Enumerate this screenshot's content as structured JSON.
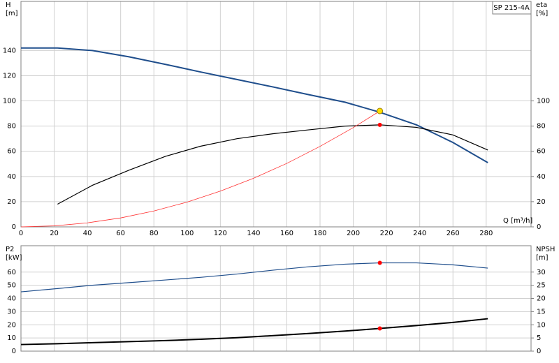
{
  "chart_data": [
    {
      "type": "line",
      "ylabel": "H",
      "yunit": "[m]",
      "y2label": "eta",
      "y2unit": "[%]",
      "xlabel": "Q [m³/h]",
      "tag": "SP 215-4A",
      "xlim": [
        0,
        307
      ],
      "xticks": [
        0,
        20,
        40,
        60,
        80,
        100,
        120,
        140,
        160,
        180,
        200,
        220,
        240,
        260,
        280
      ],
      "ylim": [
        0,
        179
      ],
      "yticks": [
        0,
        20,
        40,
        60,
        80,
        100,
        120,
        140
      ],
      "y2lim": [
        0,
        179
      ],
      "y2ticks": [
        0,
        20,
        40,
        60,
        80,
        100
      ],
      "grid": true,
      "series": [
        {
          "color": "#1f4e8c",
          "line_width": 2,
          "x": [
            0,
            22,
            43,
            65,
            87,
            108,
            130,
            152,
            173,
            195,
            216,
            238,
            260,
            281
          ],
          "values": [
            142,
            142,
            140,
            135,
            129,
            123,
            117,
            111,
            105,
            99,
            91,
            81,
            67,
            51
          ]
        },
        {
          "color": "#000000",
          "line_width": 1.2,
          "axis": "y2",
          "x": [
            22,
            43,
            65,
            87,
            108,
            130,
            152,
            173,
            195,
            216,
            238,
            260,
            281
          ],
          "values": [
            18,
            33,
            45,
            56,
            64,
            70,
            74,
            77,
            80,
            81,
            79,
            73,
            61
          ]
        },
        {
          "color": "#ff3030",
          "line_width": 0.8,
          "x": [
            0,
            20,
            40,
            60,
            80,
            100,
            120,
            140,
            160,
            180,
            200,
            216
          ],
          "values": [
            0,
            0.8,
            3.2,
            7.1,
            12.6,
            19.7,
            28.4,
            38.6,
            50.4,
            63.9,
            78.8,
            92
          ]
        }
      ],
      "markers": [
        {
          "x": 216,
          "y": 92,
          "color": "#ffe000"
        },
        {
          "x": 216,
          "y": 81,
          "color": "#ff0000",
          "axis": "y2"
        }
      ]
    },
    {
      "type": "line",
      "ylabel": "P2",
      "yunit": "[kW]",
      "y2label": "NPSH",
      "y2unit": "[m]",
      "xlim": [
        0,
        307
      ],
      "xticks": [
        0,
        20,
        40,
        60,
        80,
        100,
        120,
        140,
        160,
        180,
        200,
        220,
        240,
        260,
        280
      ],
      "ylim": [
        0,
        80
      ],
      "yticks": [
        0,
        10,
        20,
        30,
        40,
        50,
        60
      ],
      "y2lim": [
        0,
        40
      ],
      "y2ticks": [
        0,
        5,
        10,
        15,
        20,
        25,
        30
      ],
      "grid": true,
      "series": [
        {
          "color": "#1f4e8c",
          "line_width": 1.2,
          "x": [
            0,
            22,
            43,
            65,
            87,
            108,
            130,
            152,
            173,
            195,
            216,
            238,
            260,
            281
          ],
          "values": [
            45,
            47.5,
            50,
            52,
            54,
            56,
            58.5,
            61.5,
            64,
            66,
            67,
            67,
            65.5,
            63
          ]
        },
        {
          "color": "#000000",
          "line_width": 2,
          "axis": "y2",
          "x": [
            0,
            22,
            43,
            65,
            87,
            108,
            130,
            152,
            173,
            195,
            216,
            238,
            260,
            281
          ],
          "values": [
            2.5,
            2.8,
            3.2,
            3.6,
            4.0,
            4.5,
            5.1,
            5.9,
            6.7,
            7.6,
            8.6,
            9.7,
            10.9,
            12.3
          ]
        }
      ],
      "markers": [
        {
          "x": 216,
          "y": 67,
          "color": "#ff0000"
        },
        {
          "x": 216,
          "y": 8.6,
          "color": "#ff0000",
          "axis": "y2"
        }
      ]
    }
  ]
}
